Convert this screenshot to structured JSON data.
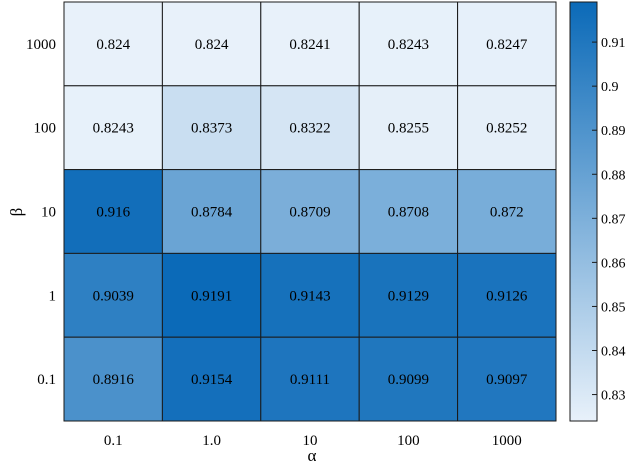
{
  "chart_data": {
    "type": "heatmap",
    "title": "",
    "xlabel": "α",
    "ylabel": "β",
    "x_categories": [
      "0.1",
      "1.0",
      "10",
      "100",
      "1000"
    ],
    "y_categories": [
      "1000",
      "100",
      "10",
      "1",
      "0.1"
    ],
    "values": [
      [
        0.824,
        0.824,
        0.8241,
        0.8243,
        0.8247
      ],
      [
        0.8243,
        0.8373,
        0.8322,
        0.8255,
        0.8252
      ],
      [
        0.916,
        0.8784,
        0.8709,
        0.8708,
        0.872
      ],
      [
        0.9039,
        0.9191,
        0.9143,
        0.9129,
        0.9126
      ],
      [
        0.8916,
        0.9154,
        0.9111,
        0.9099,
        0.9097
      ]
    ],
    "cell_labels": [
      [
        "0.824",
        "0.824",
        "0.8241",
        "0.8243",
        "0.8247"
      ],
      [
        "0.8243",
        "0.8373",
        "0.8322",
        "0.8255",
        "0.8252"
      ],
      [
        "0.916",
        "0.8784",
        "0.8709",
        "0.8708",
        "0.872"
      ],
      [
        "0.9039",
        "0.9191",
        "0.9143",
        "0.9129",
        "0.9126"
      ],
      [
        "0.8916",
        "0.9154",
        "0.9111",
        "0.9099",
        "0.9097"
      ]
    ],
    "colorbar": {
      "range": [
        0.824,
        0.9191
      ],
      "ticks": [
        0.83,
        0.84,
        0.85,
        0.86,
        0.87,
        0.88,
        0.89,
        0.9,
        0.91
      ],
      "tick_labels": [
        "0.83",
        "0.84",
        "0.85",
        "0.86",
        "0.87",
        "0.88",
        "0.89",
        "0.9",
        "0.91"
      ],
      "color_low": "#e8f1fa",
      "color_high": "#0b6ab8"
    }
  }
}
